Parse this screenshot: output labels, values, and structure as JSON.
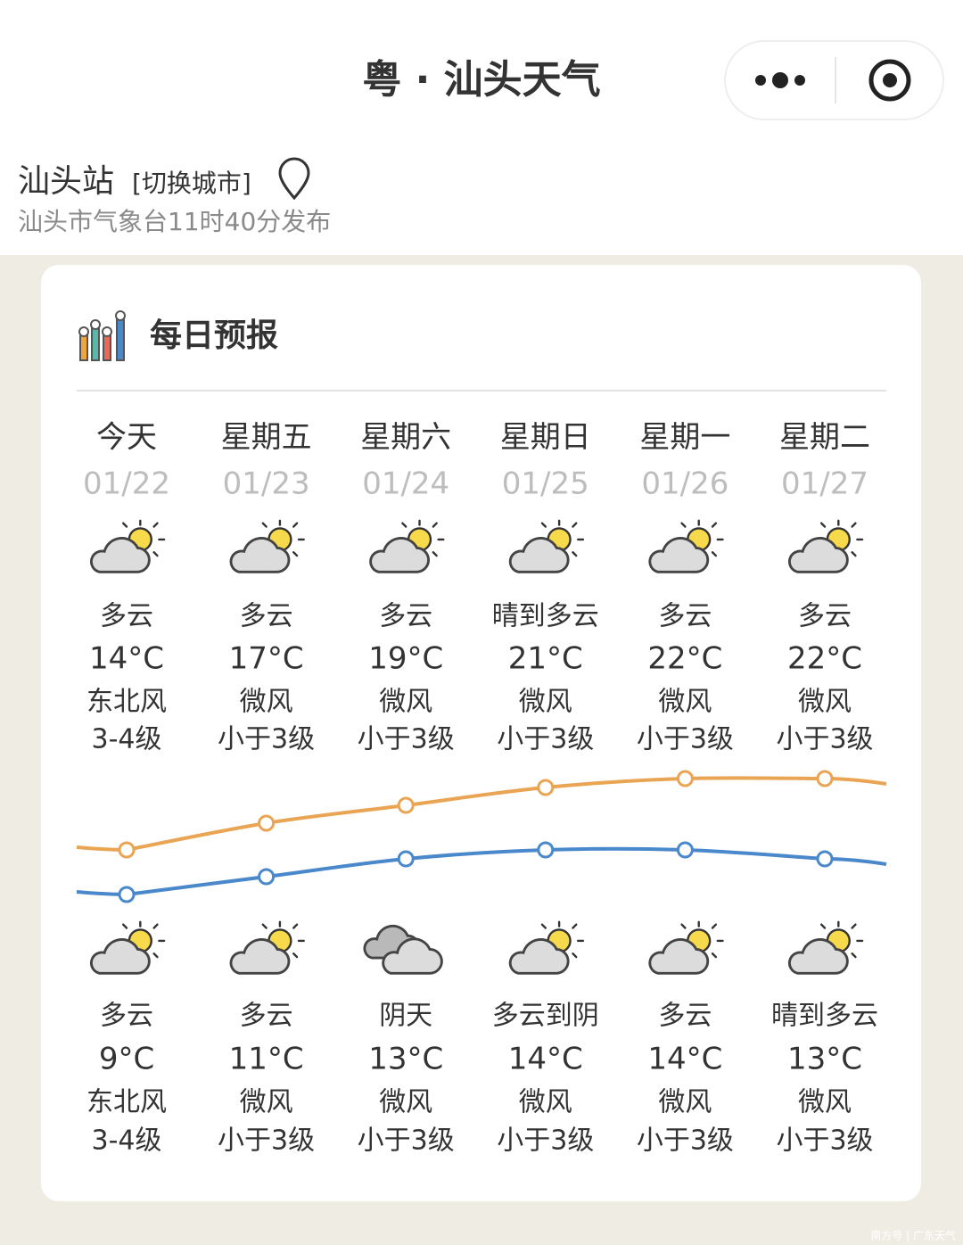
{
  "header": {
    "title": "粤 · 汕头天气"
  },
  "station": {
    "name": "汕头站",
    "switch": "[切换城市]",
    "publish": "汕头市气象台11时40分发布"
  },
  "forecast": {
    "title": "每日预报",
    "high_color": "#e9a553",
    "low_color": "#4a88cc",
    "days": [
      {
        "name": "今天",
        "date": "01/22",
        "day": {
          "weather": "多云",
          "temp": {
            "value": 14,
            "label": "14°C"
          },
          "wind": "东北风",
          "level": "3-4级"
        },
        "night": {
          "weather": "多云",
          "temp": {
            "value": 9,
            "label": "9°C"
          },
          "wind": "东北风",
          "level": "3-4级"
        }
      },
      {
        "name": "星期五",
        "date": "01/23",
        "day": {
          "weather": "多云",
          "temp": {
            "value": 17,
            "label": "17°C"
          },
          "wind": "微风",
          "level": "小于3级"
        },
        "night": {
          "weather": "多云",
          "temp": {
            "value": 11,
            "label": "11°C"
          },
          "wind": "微风",
          "level": "小于3级"
        }
      },
      {
        "name": "星期六",
        "date": "01/24",
        "day": {
          "weather": "多云",
          "temp": {
            "value": 19,
            "label": "19°C"
          },
          "wind": "微风",
          "level": "小于3级"
        },
        "night": {
          "weather": "阴天",
          "temp": {
            "value": 13,
            "label": "13°C"
          },
          "wind": "微风",
          "level": "小于3级"
        }
      },
      {
        "name": "星期日",
        "date": "01/25",
        "day": {
          "weather": "晴到多云",
          "temp": {
            "value": 21,
            "label": "21°C"
          },
          "wind": "微风",
          "level": "小于3级"
        },
        "night": {
          "weather": "多云到阴",
          "temp": {
            "value": 14,
            "label": "14°C"
          },
          "wind": "微风",
          "level": "小于3级"
        }
      },
      {
        "name": "星期一",
        "date": "01/26",
        "day": {
          "weather": "多云",
          "temp": {
            "value": 22,
            "label": "22°C"
          },
          "wind": "微风",
          "level": "小于3级"
        },
        "night": {
          "weather": "多云",
          "temp": {
            "value": 14,
            "label": "14°C"
          },
          "wind": "微风",
          "level": "小于3级"
        }
      },
      {
        "name": "星期二",
        "date": "01/27",
        "day": {
          "weather": "多云",
          "temp": {
            "value": 22,
            "label": "22°C"
          },
          "wind": "微风",
          "level": "小于3级"
        },
        "night": {
          "weather": "晴到多云",
          "temp": {
            "value": 13,
            "label": "13°C"
          },
          "wind": "微风",
          "level": "小于3级"
        }
      }
    ]
  },
  "watermark": "南方号 | 广东天气"
}
